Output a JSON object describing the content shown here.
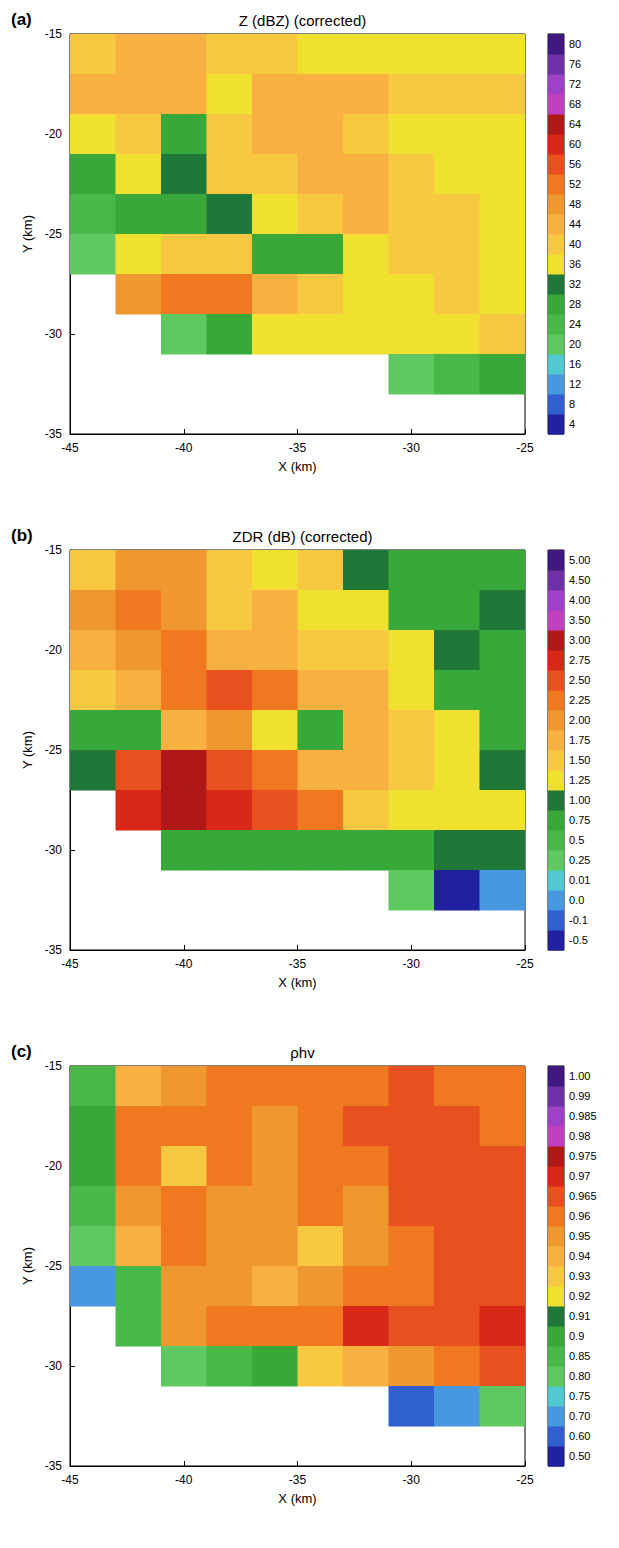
{
  "chart_data": [
    {
      "type": "heatmap",
      "panel_label": "(a)",
      "title": "Z (dBZ) (corrected)",
      "xlabel": "X (km)",
      "ylabel": "Y (km)",
      "xlim": [
        -45,
        -25
      ],
      "ylim": [
        -35,
        -15
      ],
      "xticks": [
        -45,
        -40,
        -35,
        -30,
        -25
      ],
      "yticks": [
        -35,
        -30,
        -25,
        -20,
        -15
      ],
      "x": [
        -44,
        -42,
        -40,
        -38,
        -36,
        -34,
        -32,
        -30,
        -28,
        -26
      ],
      "y": [
        -16,
        -18,
        -20,
        -22,
        -24,
        -26,
        -28,
        -30,
        -32,
        -34
      ],
      "cells": [
        [
          40,
          44,
          44,
          40,
          40,
          38,
          38,
          36,
          36,
          38
        ],
        [
          44,
          46,
          44,
          36,
          44,
          46,
          44,
          40,
          42,
          40
        ],
        [
          38,
          42,
          30,
          40,
          44,
          44,
          40,
          38,
          38,
          36
        ],
        [
          30,
          38,
          32,
          40,
          42,
          44,
          44,
          40,
          38,
          36
        ],
        [
          24,
          30,
          30,
          34,
          36,
          42,
          44,
          42,
          40,
          38
        ],
        [
          20,
          36,
          42,
          40,
          30,
          28,
          36,
          42,
          40,
          36
        ],
        [
          null,
          48,
          52,
          52,
          46,
          42,
          36,
          36,
          40,
          38
        ],
        [
          null,
          null,
          20,
          30,
          38,
          36,
          38,
          36,
          38,
          40
        ],
        [
          null,
          null,
          null,
          null,
          null,
          null,
          null,
          20,
          24,
          28
        ],
        [
          null,
          null,
          null,
          null,
          null,
          null,
          null,
          null,
          null,
          null
        ]
      ],
      "colorbar": {
        "ticks": [
          4,
          8,
          12,
          16,
          20,
          24,
          28,
          32,
          36,
          40,
          44,
          48,
          52,
          56,
          60,
          64,
          68,
          72,
          76,
          80
        ],
        "colors": [
          "#2020a0",
          "#3060d0",
          "#4898e0",
          "#50c8d0",
          "#60c860",
          "#48b848",
          "#38a838",
          "#207838",
          "#f0e030",
          "#f8c840",
          "#f8b040",
          "#f09830",
          "#f07820",
          "#e85020",
          "#d82818",
          "#b01818",
          "#c040c0",
          "#a040c8",
          "#7030a8",
          "#401880"
        ]
      }
    },
    {
      "type": "heatmap",
      "panel_label": "(b)",
      "title": "ZDR (dB) (corrected)",
      "xlabel": "X (km)",
      "ylabel": "Y (km)",
      "xlim": [
        -45,
        -25
      ],
      "ylim": [
        -35,
        -15
      ],
      "xticks": [
        -45,
        -40,
        -35,
        -30,
        -25
      ],
      "yticks": [
        -35,
        -30,
        -25,
        -20,
        -15
      ],
      "x": [
        -44,
        -42,
        -40,
        -38,
        -36,
        -34,
        -32,
        -30,
        -28,
        -26
      ],
      "y": [
        -16,
        -18,
        -20,
        -22,
        -24,
        -26,
        -28,
        -30,
        -32,
        -34
      ],
      "cells": [
        [
          1.5,
          2.0,
          2.0,
          1.5,
          1.25,
          1.5,
          1.0,
          0.8,
          0.8,
          0.8
        ],
        [
          2.0,
          2.25,
          2.0,
          1.5,
          1.75,
          1.25,
          1.25,
          0.9,
          0.9,
          1.1
        ],
        [
          1.75,
          2.0,
          2.25,
          1.75,
          1.75,
          1.5,
          1.5,
          1.3,
          1.0,
          0.8
        ],
        [
          1.5,
          1.75,
          2.25,
          2.5,
          2.25,
          1.75,
          1.75,
          1.3,
          0.8,
          0.8
        ],
        [
          0.9,
          0.9,
          1.75,
          2.0,
          1.3,
          0.8,
          1.75,
          1.5,
          1.25,
          0.9
        ],
        [
          1.0,
          2.5,
          3.0,
          2.5,
          2.25,
          1.75,
          1.75,
          1.5,
          1.3,
          1.2
        ],
        [
          null,
          2.75,
          3.2,
          2.75,
          2.5,
          2.25,
          1.5,
          1.3,
          1.3,
          1.25
        ],
        [
          null,
          null,
          0.8,
          0.9,
          0.9,
          0.9,
          0.9,
          0.8,
          1.0,
          1.0
        ],
        [
          null,
          null,
          null,
          null,
          null,
          null,
          null,
          0.3,
          -0.2,
          0.0
        ],
        [
          null,
          null,
          null,
          null,
          null,
          null,
          null,
          null,
          null,
          null
        ]
      ],
      "colorbar": {
        "ticks": [
          -0.5,
          -0.1,
          {
            "value": 0,
            "label": "0.0"
          },
          0.01,
          0.25,
          0.5,
          0.75,
          {
            "value": 1,
            "label": "1.00"
          },
          1.25,
          {
            "value": 1.5,
            "label": "1.50"
          },
          1.75,
          {
            "value": 2,
            "label": "2.00"
          },
          2.25,
          {
            "value": 2.5,
            "label": "2.50"
          },
          2.75,
          {
            "value": 3,
            "label": "3.00"
          },
          {
            "value": 3.5,
            "label": "3.50"
          },
          {
            "value": 4,
            "label": "4.00"
          },
          {
            "value": 4.5,
            "label": "4.50"
          },
          {
            "value": 5,
            "label": "5.00"
          }
        ],
        "colors": [
          "#2020a0",
          "#3060d0",
          "#4898e0",
          "#50c8d0",
          "#60c860",
          "#48b848",
          "#38a838",
          "#207838",
          "#f0e030",
          "#f8c840",
          "#f8b040",
          "#f09830",
          "#f07820",
          "#e85020",
          "#d82818",
          "#b01818",
          "#c040c0",
          "#a040c8",
          "#7030a8",
          "#401880"
        ]
      }
    },
    {
      "type": "heatmap",
      "panel_label": "(c)",
      "title": "ρhv",
      "xlabel": "X (km)",
      "ylabel": "Y (km)",
      "xlim": [
        -45,
        -25
      ],
      "ylim": [
        -35,
        -15
      ],
      "xticks": [
        -45,
        -40,
        -35,
        -30,
        -25
      ],
      "yticks": [
        -35,
        -30,
        -25,
        -20,
        -15
      ],
      "x": [
        -44,
        -42,
        -40,
        -38,
        -36,
        -34,
        -32,
        -30,
        -28,
        -26
      ],
      "y": [
        -16,
        -18,
        -20,
        -22,
        -24,
        -26,
        -28,
        -30,
        -32,
        -34
      ],
      "cells": [
        [
          0.85,
          0.94,
          0.95,
          0.96,
          0.96,
          0.96,
          0.96,
          0.965,
          0.96,
          0.96
        ],
        [
          0.9,
          0.96,
          0.96,
          0.96,
          0.95,
          0.96,
          0.965,
          0.965,
          0.965,
          0.96
        ],
        [
          0.9,
          0.96,
          0.93,
          0.96,
          0.95,
          0.96,
          0.96,
          0.965,
          0.965,
          0.965
        ],
        [
          0.85,
          0.95,
          0.96,
          0.95,
          0.95,
          0.96,
          0.95,
          0.965,
          0.965,
          0.965
        ],
        [
          0.8,
          0.94,
          0.96,
          0.95,
          0.95,
          0.93,
          0.95,
          0.96,
          0.965,
          0.965
        ],
        [
          0.7,
          0.85,
          0.95,
          0.95,
          0.94,
          0.95,
          0.96,
          0.96,
          0.965,
          0.965
        ],
        [
          null,
          0.85,
          0.95,
          0.96,
          0.96,
          0.96,
          0.97,
          0.965,
          0.965,
          0.97
        ],
        [
          null,
          null,
          0.8,
          0.85,
          0.9,
          0.93,
          0.94,
          0.95,
          0.96,
          0.965
        ],
        [
          null,
          null,
          null,
          null,
          null,
          null,
          null,
          0.6,
          0.7,
          0.8
        ],
        [
          null,
          null,
          null,
          null,
          null,
          null,
          null,
          null,
          null,
          null
        ]
      ],
      "colorbar": {
        "ticks": [
          {
            "value": 0.5,
            "label": "0.50"
          },
          {
            "value": 0.6,
            "label": "0.60"
          },
          {
            "value": 0.7,
            "label": "0.70"
          },
          0.75,
          {
            "value": 0.8,
            "label": "0.80"
          },
          0.85,
          0.9,
          0.91,
          0.92,
          0.93,
          0.94,
          0.95,
          0.96,
          0.965,
          0.97,
          0.975,
          0.98,
          0.985,
          0.99,
          {
            "value": 1,
            "label": "1.00"
          }
        ],
        "colors": [
          "#2020a0",
          "#3060d0",
          "#4898e0",
          "#50c8d0",
          "#60c860",
          "#48b848",
          "#38a838",
          "#207838",
          "#f0e030",
          "#f8c840",
          "#f8b040",
          "#f09830",
          "#f07820",
          "#e85020",
          "#d82818",
          "#b01818",
          "#c040c0",
          "#a040c8",
          "#7030a8",
          "#401880"
        ]
      }
    }
  ]
}
